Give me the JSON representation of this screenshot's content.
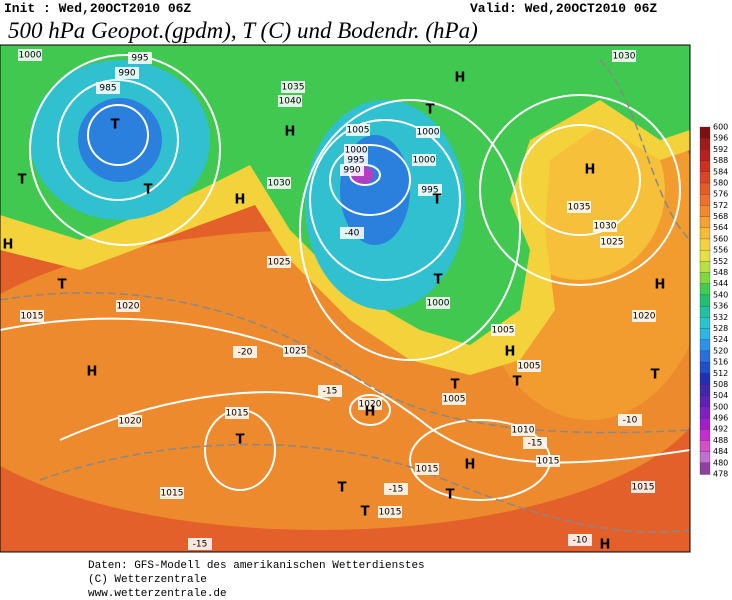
{
  "header": {
    "init": "Init : Wed,20OCT2010 06Z",
    "valid": "Valid: Wed,20OCT2010 06Z",
    "title": "500 hPa Geopot.(gpdm), T (C) und Bodendr. (hPa)"
  },
  "colorbar": {
    "levels": [
      600,
      596,
      592,
      588,
      584,
      580,
      576,
      572,
      568,
      564,
      560,
      556,
      552,
      548,
      544,
      540,
      536,
      532,
      528,
      524,
      520,
      516,
      512,
      508,
      504,
      500,
      496,
      492,
      488,
      484,
      480,
      478
    ],
    "colors": [
      "#7a1010",
      "#9c1c1c",
      "#b82020",
      "#cc3020",
      "#dc4424",
      "#e45a28",
      "#ec7030",
      "#f08a30",
      "#f4a234",
      "#f6bc38",
      "#f4d23c",
      "#e4e040",
      "#b8e040",
      "#80d840",
      "#40cc50",
      "#20c070",
      "#20c0a0",
      "#28c4cc",
      "#30b4e4",
      "#3090e4",
      "#2870d8",
      "#2050c8",
      "#2030b0",
      "#4028a8",
      "#6020b0",
      "#8020c0",
      "#a020c8",
      "#c030c8",
      "#d050c8",
      "#c070d0",
      "#9040a0"
    ]
  },
  "map": {
    "labels": [
      "1000",
      "995",
      "990",
      "985",
      "T",
      "T",
      "T",
      "H",
      "T",
      "1015",
      "1020",
      "H",
      "1020",
      "T",
      "1015",
      "1015",
      "T",
      "1020",
      "H",
      "1025",
      "-20",
      "-15",
      "1025",
      "H",
      "1030",
      "H",
      "1035",
      "1040",
      "1005",
      "1000",
      "995",
      "990",
      "T",
      "1000",
      "1000",
      "995",
      "T",
      "-40",
      "H",
      "1030",
      "H",
      "1035",
      "1030",
      "1025",
      "T",
      "1000",
      "1005",
      "H",
      "1005",
      "T",
      "1005",
      "T",
      "1010",
      "-15",
      "1015",
      "H",
      "T",
      "1015",
      "T",
      "-15",
      "1015",
      "H",
      "1020",
      "T",
      "-10",
      "1015",
      "H",
      "-10",
      "-15"
    ]
  },
  "footer": {
    "line1": "Daten: GFS-Modell des amerikanischen Wetterdienstes",
    "line2": "(C) Wetterzentrale",
    "line3": "www.wetterzentrale.de"
  }
}
